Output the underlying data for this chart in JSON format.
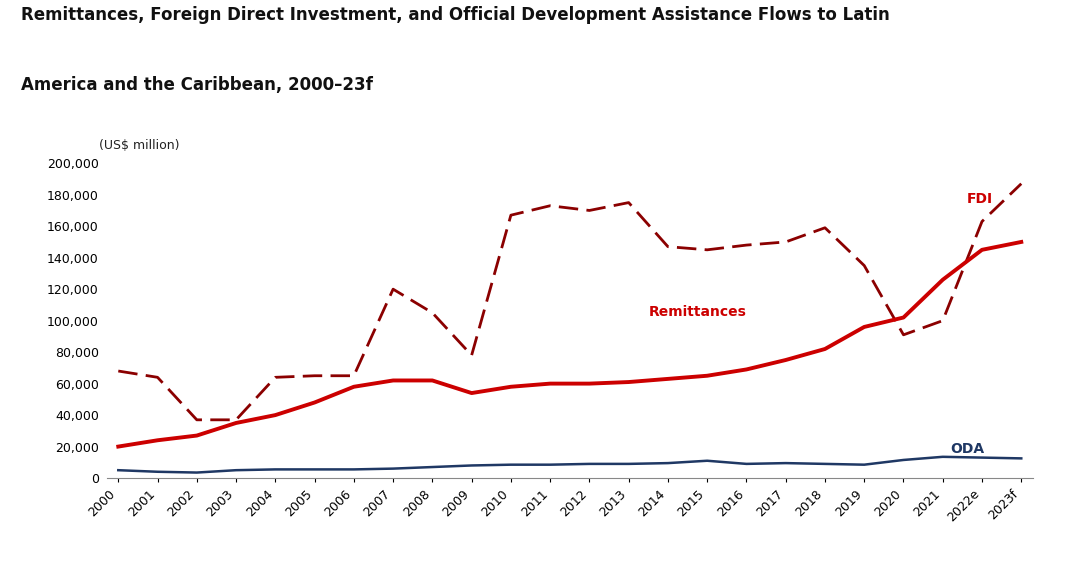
{
  "title_line1": "Remittances, Foreign Direct Investment, and Official Development Assistance Flows to Latin",
  "title_line2": "America and the Caribbean, 2000–23f",
  "ylabel": "(US$ million)",
  "years": [
    "2000",
    "2001",
    "2002",
    "2003",
    "2004",
    "2005",
    "2006",
    "2007",
    "2008",
    "2009",
    "2010",
    "2011",
    "2012",
    "2013",
    "2014",
    "2015",
    "2016",
    "2017",
    "2018",
    "2019",
    "2020",
    "2021",
    "2022e",
    "2023f"
  ],
  "remittances": [
    20000,
    24000,
    27000,
    35000,
    40000,
    48000,
    58000,
    62000,
    62000,
    54000,
    58000,
    60000,
    60000,
    61000,
    63000,
    65000,
    69000,
    75000,
    82000,
    96000,
    102000,
    126000,
    145000,
    150000
  ],
  "fdi": [
    68000,
    64000,
    37000,
    37000,
    64000,
    65000,
    65000,
    120000,
    105000,
    78000,
    167000,
    173000,
    170000,
    175000,
    147000,
    145000,
    148000,
    150000,
    159000,
    135000,
    91000,
    100000,
    163000,
    187000
  ],
  "oda": [
    5000,
    4000,
    3500,
    5000,
    5500,
    5500,
    5500,
    6000,
    7000,
    8000,
    8500,
    8500,
    9000,
    9000,
    9500,
    11000,
    9000,
    9500,
    9000,
    8500,
    11500,
    13500,
    13000,
    12500
  ],
  "remittances_color": "#cc0000",
  "fdi_color": "#8b0000",
  "oda_color": "#1f3864",
  "label_rem_color": "#cc0000",
  "label_fdi_color": "#cc0000",
  "label_oda_color": "#1f3864",
  "ylim": [
    0,
    200000
  ],
  "ytick_step": 20000,
  "background_color": "#ffffff",
  "label_remittances": "Remittances",
  "label_fdi": "FDI",
  "label_oda": "ODA",
  "title_fontsize": 12,
  "tick_fontsize": 9
}
